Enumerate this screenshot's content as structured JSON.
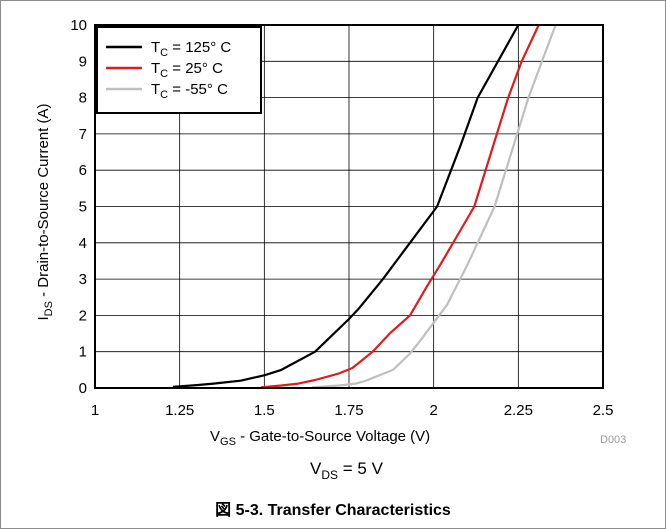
{
  "chart_data": {
    "type": "line",
    "xlim": [
      1,
      2.5
    ],
    "ylim": [
      0,
      10
    ],
    "x_ticks": [
      1,
      1.25,
      1.5,
      1.75,
      2,
      2.25,
      2.5
    ],
    "x_tick_labels": [
      "1",
      "1.25",
      "1.5",
      "1.75",
      "2",
      "2.25",
      "2.5"
    ],
    "y_ticks": [
      0,
      1,
      2,
      3,
      4,
      5,
      6,
      7,
      8,
      9,
      10
    ],
    "y_tick_labels": [
      "0",
      "1",
      "2",
      "3",
      "4",
      "5",
      "6",
      "7",
      "8",
      "9",
      "10"
    ],
    "grid": true,
    "legend_position": "top-left",
    "xlabel": {
      "main": "V",
      "sub": "GS",
      "rest": " - Gate-to-Source Voltage (V)"
    },
    "ylabel": {
      "main": "I",
      "sub": "DS",
      "rest": " - Drain-to-Source Current (A)"
    },
    "series": [
      {
        "legend_main": "T",
        "legend_sub": "C",
        "legend_rest": " = 125° C",
        "color": "#000000",
        "points": [
          [
            1.23,
            0.03
          ],
          [
            1.3,
            0.08
          ],
          [
            1.35,
            0.12
          ],
          [
            1.43,
            0.2
          ],
          [
            1.5,
            0.35
          ],
          [
            1.55,
            0.5
          ],
          [
            1.65,
            1.0
          ],
          [
            1.75,
            1.9
          ],
          [
            1.78,
            2.2
          ],
          [
            1.85,
            3.0
          ],
          [
            1.93,
            4.0
          ],
          [
            2.01,
            5.0
          ],
          [
            2.08,
            6.7
          ],
          [
            2.13,
            8.0
          ],
          [
            2.19,
            9.0
          ],
          [
            2.25,
            10.0
          ]
        ]
      },
      {
        "legend_main": "T",
        "legend_sub": "C",
        "legend_rest": " = 25° C",
        "color": "#e31a1c",
        "points": [
          [
            1.49,
            0.02
          ],
          [
            1.55,
            0.07
          ],
          [
            1.6,
            0.12
          ],
          [
            1.65,
            0.22
          ],
          [
            1.72,
            0.4
          ],
          [
            1.76,
            0.55
          ],
          [
            1.82,
            1.0
          ],
          [
            1.87,
            1.5
          ],
          [
            1.93,
            2.0
          ],
          [
            1.98,
            2.8
          ],
          [
            2.02,
            3.4
          ],
          [
            2.07,
            4.2
          ],
          [
            2.12,
            5.0
          ],
          [
            2.18,
            6.8
          ],
          [
            2.22,
            8.0
          ],
          [
            2.26,
            9.0
          ],
          [
            2.31,
            10.0
          ]
        ]
      },
      {
        "legend_main": "T",
        "legend_sub": "C",
        "legend_rest": " = -55° C",
        "color": "#bfbfbf",
        "points": [
          [
            1.64,
            0.02
          ],
          [
            1.72,
            0.07
          ],
          [
            1.77,
            0.12
          ],
          [
            1.8,
            0.2
          ],
          [
            1.88,
            0.5
          ],
          [
            1.93,
            0.95
          ],
          [
            1.96,
            1.3
          ],
          [
            2.0,
            1.8
          ],
          [
            2.04,
            2.3
          ],
          [
            2.1,
            3.4
          ],
          [
            2.18,
            5.0
          ],
          [
            2.24,
            6.8
          ],
          [
            2.28,
            8.0
          ],
          [
            2.32,
            9.0
          ],
          [
            2.36,
            10.0
          ]
        ]
      }
    ]
  },
  "code_label": "D003",
  "condition": {
    "main": "V",
    "sub": "DS",
    "rest": " = 5 V"
  },
  "caption": "図 5-3. Transfer Characteristics"
}
